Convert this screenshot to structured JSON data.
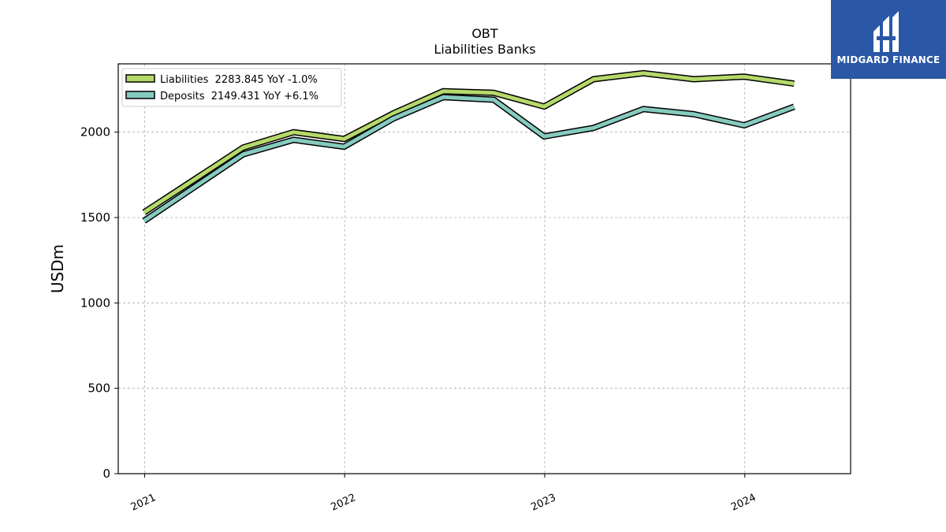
{
  "logo": {
    "text": "MIDGARD FINANCE",
    "bg_color": "#2a57a6"
  },
  "chart_data": {
    "type": "line",
    "title": "OBT",
    "subtitle": "Liabilities Banks",
    "xlabel": "",
    "ylabel": "USDm",
    "xlim": [
      "2020-11-14",
      "2024-07-12"
    ],
    "ylim": [
      0,
      2400
    ],
    "yticks": [
      0,
      500,
      1000,
      1500,
      2000
    ],
    "xticks": [
      {
        "date": "2021-01-01",
        "label": "2021"
      },
      {
        "date": "2022-01-01",
        "label": "2022"
      },
      {
        "date": "2023-01-01",
        "label": "2023"
      },
      {
        "date": "2024-01-01",
        "label": "2024"
      }
    ],
    "grid": true,
    "legend": "top-left",
    "x": [
      "2020-12-31",
      "2021-06-30",
      "2021-09-30",
      "2021-12-31",
      "2022-03-31",
      "2022-06-30",
      "2022-09-30",
      "2022-12-31",
      "2023-03-31",
      "2023-06-30",
      "2023-09-30",
      "2023-12-31",
      "2024-03-31"
    ],
    "series": [
      {
        "name": "Liabilities",
        "legend_label": "Liabilities  2283.845 YoY -1.0%",
        "color": "#b5d96a",
        "values": [
          1530,
          1910,
          2000,
          1960,
          2110,
          2240,
          2230,
          2150,
          2310,
          2345,
          2310,
          2325,
          2284
        ]
      },
      {
        "name": "Deposits",
        "legend_label": "Deposits  2149.431 YoY +6.1%",
        "color": "#86cbbf",
        "values": [
          1480,
          1870,
          1955,
          1915,
          2080,
          2205,
          2190,
          1975,
          2025,
          2135,
          2105,
          2040,
          2149
        ]
      }
    ]
  }
}
